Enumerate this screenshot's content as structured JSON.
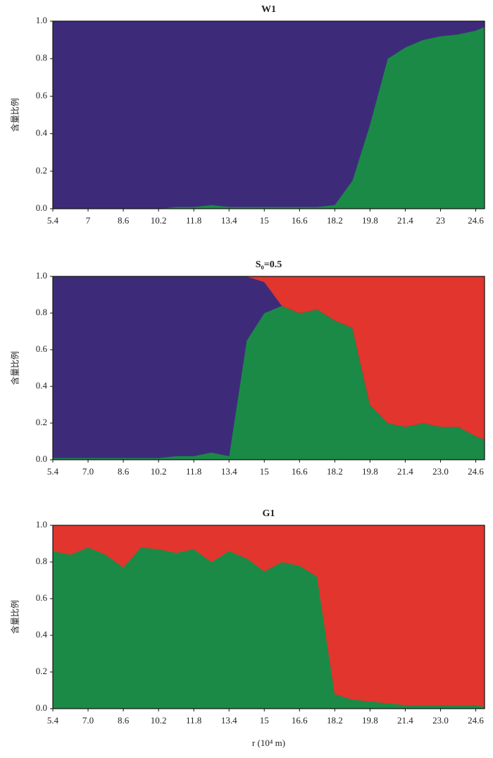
{
  "chart_data": [
    {
      "type": "area",
      "stacked": true,
      "title": "W1",
      "y_label": "含量比例",
      "x": [
        5.4,
        6.2,
        7.0,
        7.8,
        8.6,
        9.4,
        10.2,
        11.0,
        11.8,
        12.6,
        13.4,
        14.2,
        15.0,
        15.8,
        16.6,
        17.4,
        18.2,
        19.0,
        19.8,
        20.6,
        21.4,
        22.2,
        23.0,
        23.8,
        24.6,
        25.0
      ],
      "series": [
        {
          "color": "#1b8a46",
          "values": [
            0,
            0,
            0,
            0,
            0,
            0,
            0,
            0.01,
            0.01,
            0.02,
            0.01,
            0.01,
            0.01,
            0.01,
            0.01,
            0.01,
            0.02,
            0.15,
            0.45,
            0.8,
            0.86,
            0.9,
            0.92,
            0.93,
            0.95,
            0.97
          ]
        },
        {
          "color": "#3d2b7a",
          "values": [
            1,
            1,
            1,
            1,
            1,
            1,
            1,
            0.99,
            0.99,
            0.98,
            0.99,
            0.99,
            0.99,
            0.99,
            0.99,
            0.99,
            0.98,
            0.85,
            0.55,
            0.2,
            0.14,
            0.1,
            0.08,
            0.07,
            0.05,
            0.03
          ]
        }
      ],
      "xlim": [
        5.4,
        25.0
      ],
      "xticks": [
        5.4,
        7,
        8.6,
        10.2,
        11.8,
        13.4,
        15,
        16.6,
        18.2,
        19.8,
        21.4,
        23,
        24.6
      ],
      "ylim": [
        0,
        1
      ],
      "yticks": [
        {
          "value": 0,
          "label": "0.0"
        },
        0.2,
        0.4,
        0.6,
        0.8,
        {
          "value": 1,
          "label": "1.0"
        }
      ]
    },
    {
      "type": "area",
      "stacked": true,
      "title": "S₀=0.5",
      "y_label": "含量比例",
      "x": [
        5.4,
        6.2,
        7.0,
        7.8,
        8.6,
        9.4,
        10.2,
        11.0,
        11.8,
        12.6,
        13.4,
        14.2,
        15.0,
        15.8,
        16.6,
        17.4,
        18.2,
        19.0,
        19.8,
        20.6,
        21.4,
        22.2,
        23.0,
        23.8,
        24.6,
        25.0
      ],
      "series": [
        {
          "color": "#1b8a46",
          "values": [
            0.01,
            0.01,
            0.01,
            0.01,
            0.01,
            0.01,
            0.01,
            0.02,
            0.02,
            0.04,
            0.02,
            0.65,
            0.8,
            0.84,
            0.8,
            0.82,
            0.76,
            0.72,
            0.3,
            0.2,
            0.18,
            0.2,
            0.18,
            0.18,
            0.13,
            0.11
          ]
        },
        {
          "color": "#3d2b7a",
          "values": [
            0.99,
            0.99,
            0.99,
            0.99,
            0.99,
            0.99,
            0.99,
            0.98,
            0.98,
            0.96,
            0.98,
            0.35,
            0.17,
            0,
            0,
            0,
            0,
            0,
            0,
            0,
            0,
            0,
            0,
            0,
            0,
            0
          ]
        },
        {
          "color": "#e1352d",
          "values": [
            0,
            0,
            0,
            0,
            0,
            0,
            0,
            0,
            0,
            0,
            0,
            0,
            0.03,
            0.16,
            0.2,
            0.18,
            0.24,
            0.28,
            0.7,
            0.8,
            0.82,
            0.8,
            0.82,
            0.82,
            0.87,
            0.89
          ]
        }
      ],
      "xlim": [
        5.4,
        25.0
      ],
      "xticks": [
        5.4,
        {
          "value": 7,
          "label": "7.0"
        },
        8.6,
        10.2,
        11.8,
        13.4,
        15,
        16.6,
        18.2,
        19.8,
        21.4,
        {
          "value": 23,
          "label": "23.0"
        },
        24.6
      ],
      "ylim": [
        0,
        1
      ],
      "yticks": [
        {
          "value": 0,
          "label": "0.0"
        },
        0.2,
        0.4,
        0.6,
        0.8,
        {
          "value": 1,
          "label": "1.0"
        }
      ]
    },
    {
      "type": "area",
      "stacked": true,
      "title": "G1",
      "y_label": "含量比例",
      "x_label": "r (10⁴ m)",
      "x": [
        5.4,
        6.2,
        7.0,
        7.8,
        8.6,
        9.4,
        10.2,
        11.0,
        11.8,
        12.6,
        13.4,
        14.2,
        15.0,
        15.8,
        16.6,
        17.4,
        18.2,
        19.0,
        19.8,
        20.6,
        21.4,
        22.2,
        23.0,
        23.8,
        24.6,
        25.0
      ],
      "series": [
        {
          "color": "#1b8a46",
          "values": [
            0.86,
            0.84,
            0.88,
            0.84,
            0.77,
            0.88,
            0.87,
            0.85,
            0.87,
            0.8,
            0.86,
            0.82,
            0.75,
            0.8,
            0.78,
            0.72,
            0.08,
            0.05,
            0.04,
            0.03,
            0.02,
            0.02,
            0.02,
            0.02,
            0.02,
            0.01
          ]
        },
        {
          "color": "#e1352d",
          "values": [
            0.14,
            0.16,
            0.12,
            0.16,
            0.23,
            0.12,
            0.13,
            0.15,
            0.13,
            0.2,
            0.14,
            0.18,
            0.25,
            0.2,
            0.22,
            0.28,
            0.92,
            0.95,
            0.96,
            0.97,
            0.98,
            0.98,
            0.98,
            0.98,
            0.98,
            0.99
          ]
        }
      ],
      "xlim": [
        5.4,
        25.0
      ],
      "xticks": [
        5.4,
        {
          "value": 7,
          "label": "7.0"
        },
        8.6,
        10.2,
        11.8,
        13.4,
        15,
        16.6,
        18.2,
        19.8,
        21.4,
        {
          "value": 23,
          "label": "23.0"
        },
        24.6
      ],
      "ylim": [
        0,
        1
      ],
      "yticks": [
        {
          "value": 0,
          "label": "0.0"
        },
        0.2,
        0.4,
        0.6,
        0.8,
        {
          "value": 1,
          "label": "1.0"
        }
      ]
    }
  ]
}
